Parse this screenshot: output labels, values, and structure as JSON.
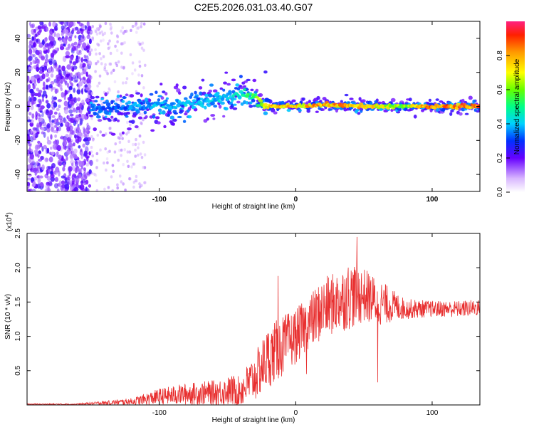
{
  "figure": {
    "title": "C2E5.2026.031.03.40.G07"
  },
  "chart_data": [
    {
      "type": "heatmap",
      "xlabel": "Height of straight line (km)",
      "ylabel": "Frequency (Hz)",
      "xlim": [
        -197,
        135
      ],
      "ylim": [
        -50,
        50
      ],
      "xticks": [
        -100,
        0,
        100
      ],
      "xtick_labels": [
        "-100",
        "0",
        "100"
      ],
      "yticks": [
        -40,
        -20,
        0,
        20,
        40
      ],
      "ytick_labels": [
        "-40",
        "-20",
        "0",
        "20",
        "40"
      ],
      "colorbar": {
        "label": "Normalized spectral amplitude",
        "range": [
          0,
          1
        ],
        "ticks": [
          0,
          0.2,
          0.4,
          0.6,
          0.8
        ],
        "tick_labels": [
          "0.0",
          "0.2",
          "0.4",
          "0.6",
          "0.8"
        ]
      },
      "ridge": {
        "x": [
          -150,
          -120,
          -100,
          -80,
          -60,
          -40,
          -30,
          -20,
          0,
          20,
          50,
          80,
          100,
          135
        ],
        "freq": [
          -2,
          0,
          0,
          1,
          4,
          7,
          5,
          0,
          0,
          1,
          0,
          0,
          0,
          0
        ],
        "amplitude": [
          0.35,
          0.4,
          0.45,
          0.45,
          0.45,
          0.5,
          0.6,
          0.9,
          0.85,
          0.9,
          0.85,
          0.7,
          0.95,
          0.95
        ]
      },
      "noise_region_x": [
        -197,
        -150
      ]
    },
    {
      "type": "line",
      "xlabel": "Height of straight line (km)",
      "ylabel": "SNR (10 * v/v)",
      "scale_label": "(x10",
      "scale_exp": "4",
      "scale_close": ")",
      "xlim": [
        -197,
        135
      ],
      "ylim": [
        0,
        2.5
      ],
      "xticks": [
        -100,
        0,
        100
      ],
      "xtick_labels": [
        "-100",
        "0",
        "100"
      ],
      "yticks": [
        0.5,
        1.0,
        1.5,
        2.0,
        2.5
      ],
      "ytick_labels": [
        "0.5",
        "1.0",
        "1.5",
        "2.0",
        "2.5"
      ],
      "series": [
        {
          "name": "SNR",
          "color": "#e83030",
          "x": [
            -197,
            -160,
            -140,
            -120,
            -100,
            -80,
            -60,
            -40,
            -30,
            -20,
            -10,
            0,
            10,
            20,
            30,
            40,
            50,
            60,
            70,
            80,
            100,
            120,
            135
          ],
          "mean": [
            0.01,
            0.01,
            0.03,
            0.05,
            0.12,
            0.16,
            0.18,
            0.22,
            0.4,
            0.7,
            0.85,
            1.0,
            1.2,
            1.4,
            1.5,
            1.6,
            1.6,
            1.5,
            1.45,
            1.4,
            1.4,
            1.4,
            1.42
          ],
          "amp": [
            0.01,
            0.01,
            0.03,
            0.05,
            0.12,
            0.16,
            0.18,
            0.25,
            0.35,
            0.45,
            0.45,
            0.4,
            0.4,
            0.45,
            0.45,
            0.5,
            0.4,
            0.35,
            0.25,
            0.15,
            0.12,
            0.12,
            0.12
          ],
          "spikes": [
            {
              "x": -13,
              "y": 1.88
            },
            {
              "x": 45,
              "y": 2.45
            },
            {
              "x": 60,
              "y": 2.5
            },
            {
              "x": 60,
              "y": 0.33
            },
            {
              "x": 8,
              "y": 0.45
            }
          ]
        }
      ]
    }
  ]
}
